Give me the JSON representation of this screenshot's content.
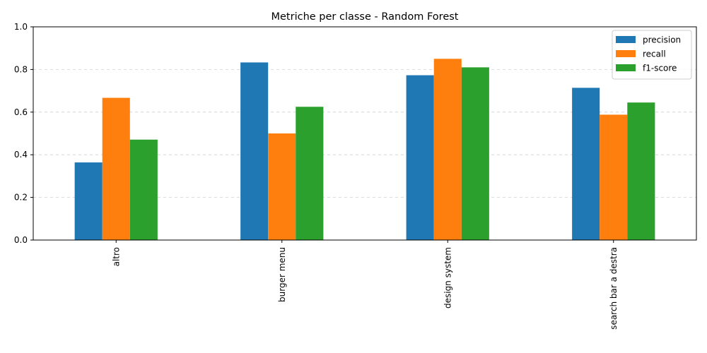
{
  "chart_data": {
    "type": "bar",
    "title": "Metriche per classe - Random Forest",
    "xlabel": "",
    "ylabel": "",
    "categories": [
      "altro",
      "burger menu",
      "design system",
      "search bar a destra"
    ],
    "series": [
      {
        "name": "precision",
        "color": "#1f77b4",
        "values": [
          0.364,
          0.833,
          0.773,
          0.714
        ]
      },
      {
        "name": "recall",
        "color": "#ff7f0e",
        "values": [
          0.667,
          0.5,
          0.85,
          0.588
        ]
      },
      {
        "name": "f1-score",
        "color": "#2ca02c",
        "values": [
          0.471,
          0.625,
          0.81,
          0.645
        ]
      }
    ],
    "ylim": [
      0,
      1.0
    ],
    "yticks": [
      "0.0",
      "0.2",
      "0.4",
      "0.6",
      "0.8",
      "1.0"
    ],
    "grid": "y-dashed",
    "legend": "top-right",
    "xtick_rotation": "vertical"
  }
}
